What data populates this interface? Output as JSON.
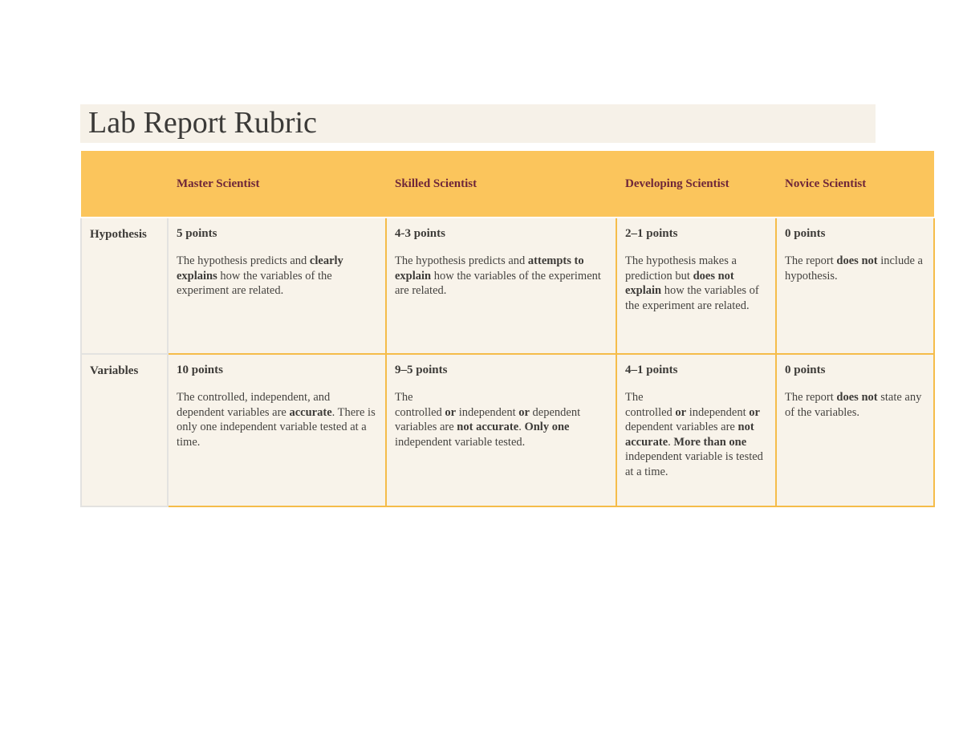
{
  "page": {
    "title_text": "Lab Report Rubric"
  },
  "colors": {
    "header_bg": "#fbc55c",
    "header_text": "#6e2639",
    "cell_bg": "#f8f3ea",
    "title_band_bg": "#f6f1e8",
    "border_orange": "#f5bc4a",
    "border_gray": "#e3e2e0",
    "body_text": "#454340"
  },
  "table": {
    "columns": [
      "",
      "Master Scientist",
      "Skilled Scientist",
      "Developing Scientist",
      "Novice Scientist"
    ],
    "rows": [
      {
        "label": "Hypothesis",
        "cells": [
          {
            "points": "5 points",
            "segments": [
              {
                "t": "The hypothesis predicts and "
              },
              {
                "t": "clearly explains",
                "b": true
              },
              {
                "t": " how the variables of the experiment are related."
              }
            ]
          },
          {
            "points": "4-3 points",
            "segments": [
              {
                "t": "The hypothesis predicts and "
              },
              {
                "t": "attempts to explain",
                "b": true
              },
              {
                "t": " how the variables of the experiment are related."
              }
            ]
          },
          {
            "points": "2–1 points",
            "segments": [
              {
                "t": "The hypothesis makes a prediction but "
              },
              {
                "t": "does not explain",
                "b": true
              },
              {
                "t": " how the variables of the experiment are related."
              }
            ]
          },
          {
            "points": "0 points",
            "segments": [
              {
                "t": "The report "
              },
              {
                "t": "does not",
                "b": true
              },
              {
                "t": " include a hypothesis."
              }
            ]
          }
        ]
      },
      {
        "label": "Variables",
        "cells": [
          {
            "points": "10 points",
            "segments": [
              {
                "t": "The controlled, independent, and dependent variables are "
              },
              {
                "t": "accurate",
                "b": true
              },
              {
                "t": ". There is only one independent variable tested at a time."
              }
            ]
          },
          {
            "points": "9–5 points",
            "segments": [
              {
                "t": "The"
              },
              {
                "br": true
              },
              {
                "t": "controlled "
              },
              {
                "t": "or",
                "b": true
              },
              {
                "t": " independent "
              },
              {
                "t": "or",
                "b": true
              },
              {
                "t": " dependent variables are "
              },
              {
                "t": "not accurate",
                "b": true
              },
              {
                "t": ". "
              },
              {
                "t": "Only one",
                "b": true
              },
              {
                "t": " independent variable tested."
              }
            ]
          },
          {
            "points": "4–1 points",
            "segments": [
              {
                "t": "The"
              },
              {
                "br": true
              },
              {
                "t": "controlled "
              },
              {
                "t": "or",
                "b": true
              },
              {
                "t": " independent "
              },
              {
                "t": "or",
                "b": true
              },
              {
                "t": " dependent variables are "
              },
              {
                "t": "not accurate",
                "b": true
              },
              {
                "t": ". "
              },
              {
                "t": "More than one",
                "b": true
              },
              {
                "t": " independent variable is tested at a time."
              }
            ]
          },
          {
            "points": "0 points",
            "segments": [
              {
                "t": "The report "
              },
              {
                "t": "does not",
                "b": true
              },
              {
                "t": " state any of the variables."
              }
            ]
          }
        ]
      }
    ]
  }
}
